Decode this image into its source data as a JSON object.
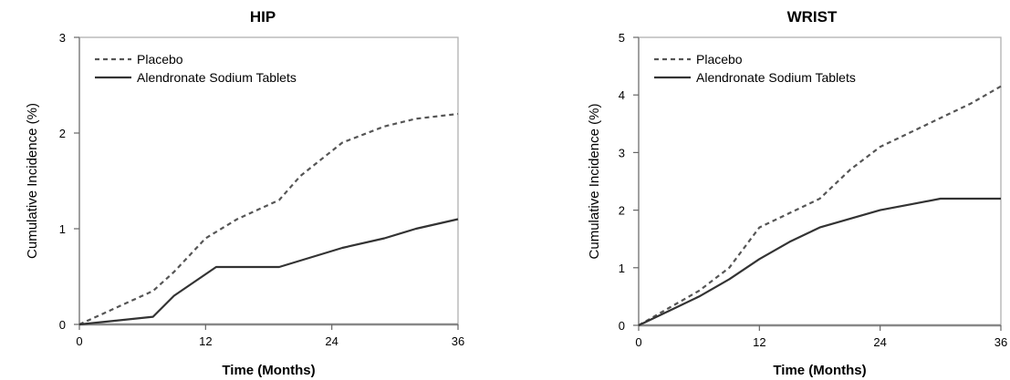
{
  "chart_data": [
    {
      "type": "line",
      "title": "HIP",
      "xlabel": "Time (Months)",
      "ylabel": "Cumulative Incidence (%)",
      "xlim": [
        0,
        36
      ],
      "ylim": [
        0,
        3
      ],
      "xticks": [
        "0",
        "12",
        "24",
        "36"
      ],
      "yticks": [
        "0",
        "1",
        "2",
        "3"
      ],
      "grid": false,
      "legend_position": "top-left",
      "series": [
        {
          "name": "Placebo",
          "style": "dashed",
          "points": [
            [
              0,
              0
            ],
            [
              2,
              0.1
            ],
            [
              4,
              0.2
            ],
            [
              7,
              0.35
            ],
            [
              9,
              0.55
            ],
            [
              12,
              0.9
            ],
            [
              15,
              1.1
            ],
            [
              19,
              1.3
            ],
            [
              21,
              1.55
            ],
            [
              25,
              1.9
            ],
            [
              29,
              2.07
            ],
            [
              32,
              2.15
            ],
            [
              36,
              2.2
            ]
          ]
        },
        {
          "name": "Alendronate Sodium Tablets",
          "style": "solid",
          "points": [
            [
              0,
              0
            ],
            [
              7,
              0.08
            ],
            [
              9,
              0.3
            ],
            [
              13,
              0.6
            ],
            [
              19,
              0.6
            ],
            [
              25,
              0.8
            ],
            [
              29,
              0.9
            ],
            [
              32,
              1.0
            ],
            [
              36,
              1.1
            ]
          ]
        }
      ]
    },
    {
      "type": "line",
      "title": "WRIST",
      "xlabel": "Time (Months)",
      "ylabel": "Cumulative Incidence (%)",
      "xlim": [
        0,
        36
      ],
      "ylim": [
        0,
        5
      ],
      "xticks": [
        "0",
        "12",
        "24",
        "36"
      ],
      "yticks": [
        "0",
        "1",
        "2",
        "3",
        "4",
        "5"
      ],
      "grid": false,
      "legend_position": "top-left",
      "series": [
        {
          "name": "Placebo",
          "style": "dashed",
          "points": [
            [
              0,
              0
            ],
            [
              3,
              0.3
            ],
            [
              6,
              0.6
            ],
            [
              9,
              1.0
            ],
            [
              12,
              1.7
            ],
            [
              15,
              1.95
            ],
            [
              18,
              2.2
            ],
            [
              21,
              2.7
            ],
            [
              24,
              3.1
            ],
            [
              27,
              3.35
            ],
            [
              30,
              3.6
            ],
            [
              33,
              3.85
            ],
            [
              36,
              4.15
            ]
          ]
        },
        {
          "name": "Alendronate Sodium Tablets",
          "style": "solid",
          "points": [
            [
              0,
              0
            ],
            [
              3,
              0.25
            ],
            [
              6,
              0.5
            ],
            [
              9,
              0.8
            ],
            [
              12,
              1.15
            ],
            [
              15,
              1.45
            ],
            [
              18,
              1.7
            ],
            [
              21,
              1.85
            ],
            [
              24,
              2.0
            ],
            [
              27,
              2.1
            ],
            [
              30,
              2.2
            ],
            [
              36,
              2.2
            ]
          ]
        }
      ]
    }
  ]
}
